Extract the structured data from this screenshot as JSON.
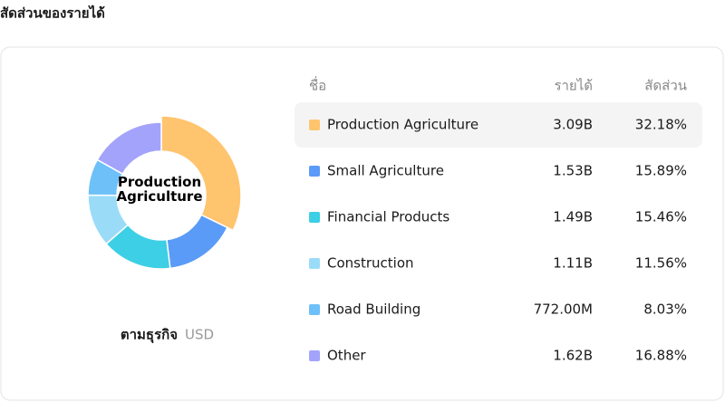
{
  "title": "สัดส่วนของรายได้",
  "chart_data": {
    "type": "donut",
    "caption": "ตามธุรกิจ",
    "unit": "USD",
    "column_headers": [
      "ชื่อ",
      "รายได้",
      "สัดส่วน"
    ],
    "categories": [
      "Production Agriculture",
      "Small Agriculture",
      "Financial Products",
      "Construction",
      "Road Building",
      "Other"
    ],
    "values": [
      32.18,
      15.89,
      15.46,
      11.56,
      8.03,
      16.88
    ],
    "value_labels": [
      "32.18%",
      "15.89%",
      "15.46%",
      "11.56%",
      "8.03%",
      "16.88%"
    ],
    "revenue_labels": [
      "3.09B",
      "1.53B",
      "1.49B",
      "1.11B",
      "772.00M",
      "1.62B"
    ],
    "colors": [
      "#ffc46e",
      "#5b9bf8",
      "#3ccfe5",
      "#9adcf8",
      "#6ec0f8",
      "#a3a3fb"
    ],
    "selected": 0
  }
}
